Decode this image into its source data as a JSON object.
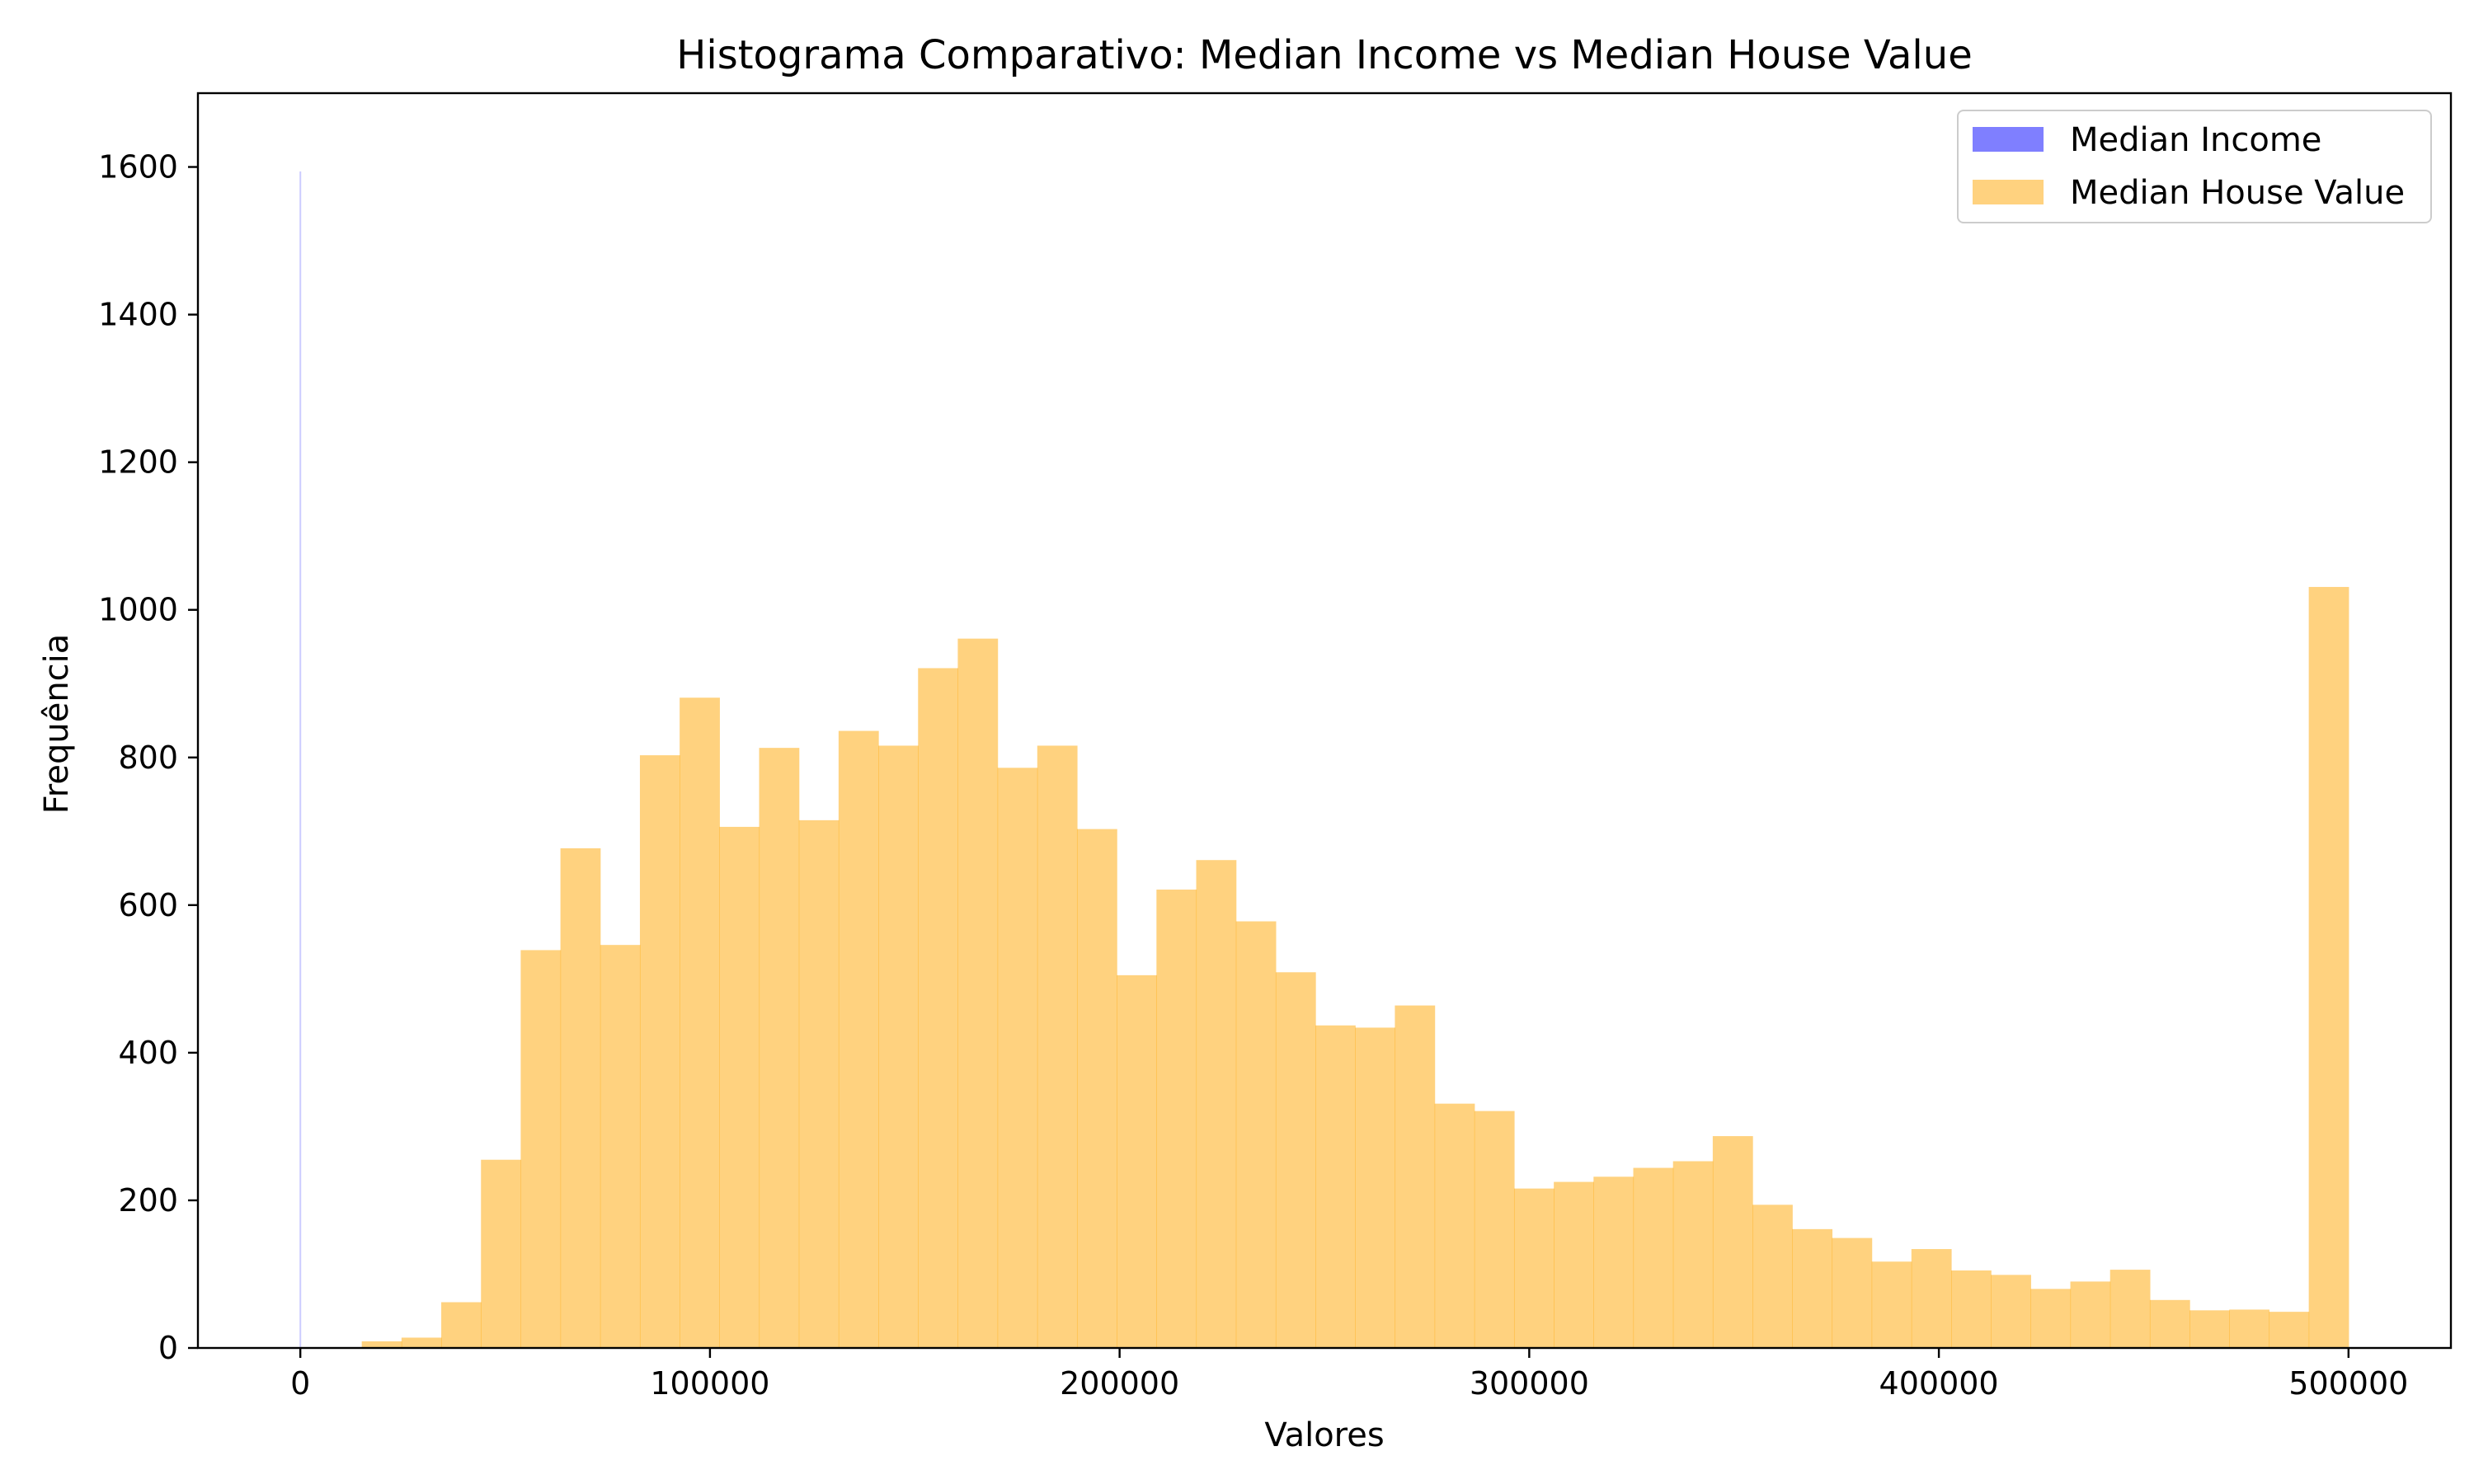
{
  "chart_data": {
    "type": "bar",
    "title": "Histograma Comparativo: Median Income vs Median House Value",
    "xlabel": "Valores",
    "ylabel": "Frequência",
    "xlim": [
      -25000,
      525000
    ],
    "ylim": [
      0,
      1700
    ],
    "x_ticks": [
      0,
      100000,
      200000,
      300000,
      400000,
      500000
    ],
    "x_tick_labels": [
      "0",
      "100000",
      "200000",
      "300000",
      "400000",
      "500000"
    ],
    "y_ticks": [
      0,
      200,
      400,
      600,
      800,
      1000,
      1200,
      1400,
      1600
    ],
    "y_tick_labels": [
      "0",
      "200",
      "400",
      "600",
      "800",
      "1000",
      "1200",
      "1400",
      "1600"
    ],
    "grid": false,
    "legend_position": "top-right",
    "series": [
      {
        "name": "Median Income",
        "color": "#0000ff",
        "alpha": 0.5,
        "bins": [
          {
            "x0": 0.4999,
            "x1": 15.0001,
            "count": 1594
          }
        ]
      },
      {
        "name": "Median House Value",
        "color": "#ffa500",
        "alpha": 0.5,
        "bin_start": 14999,
        "bin_width": 9700,
        "counts": [
          9,
          14,
          62,
          255,
          539,
          677,
          546,
          803,
          881,
          706,
          813,
          715,
          836,
          816,
          921,
          961,
          786,
          816,
          703,
          505,
          621,
          661,
          578,
          509,
          437,
          434,
          464,
          331,
          321,
          216,
          225,
          232,
          244,
          253,
          287,
          194,
          161,
          149,
          117,
          134,
          105,
          99,
          80,
          90,
          106,
          65,
          51,
          52,
          49,
          1031
        ]
      }
    ]
  }
}
